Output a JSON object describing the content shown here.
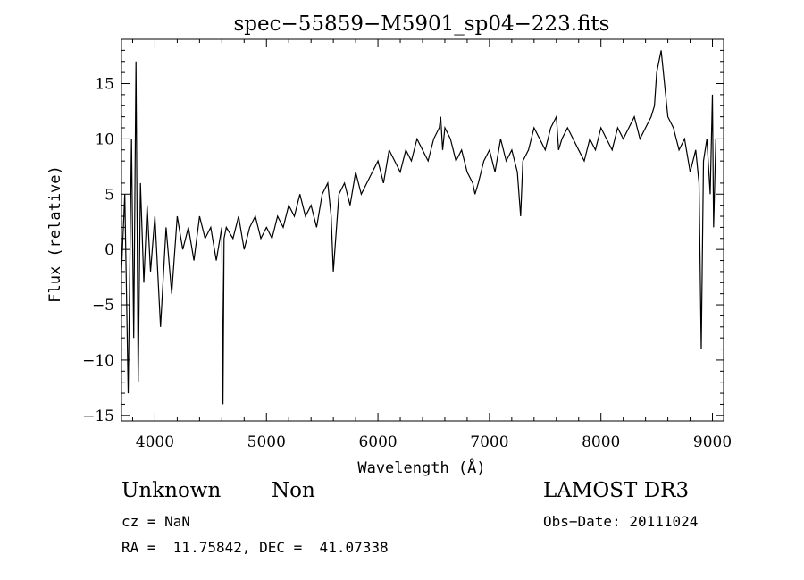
{
  "chart_data": {
    "type": "line",
    "title": "spec−55859−M5901_sp04−223.fits",
    "xlabel": "Wavelength (Å)",
    "ylabel": "Flux (relative)",
    "xlim": [
      3700,
      9100
    ],
    "ylim": [
      -15.5,
      19
    ],
    "x_ticks": [
      4000,
      5000,
      6000,
      7000,
      8000,
      9000
    ],
    "x_tick_labels": [
      "4000",
      "5000",
      "6000",
      "7000",
      "8000",
      "9000"
    ],
    "y_ticks": [
      -15,
      -10,
      -5,
      0,
      5,
      10,
      15
    ],
    "y_tick_labels": [
      "−15",
      "−10",
      "−5",
      "0",
      "5",
      "10",
      "15"
    ],
    "grid": false,
    "series": [
      {
        "x": [
          3700,
          3730,
          3760,
          3790,
          3810,
          3830,
          3850,
          3870,
          3900,
          3930,
          3960,
          4000,
          4050,
          4100,
          4150,
          4200,
          4250,
          4300,
          4350,
          4400,
          4450,
          4500,
          4550,
          4600,
          4610,
          4620,
          4640,
          4700,
          4750,
          4800,
          4850,
          4900,
          4950,
          5000,
          5050,
          5100,
          5150,
          5200,
          5250,
          5300,
          5350,
          5400,
          5450,
          5500,
          5550,
          5580,
          5600,
          5650,
          5700,
          5750,
          5800,
          5850,
          5900,
          5950,
          6000,
          6050,
          6100,
          6150,
          6200,
          6250,
          6300,
          6350,
          6400,
          6450,
          6500,
          6550,
          6563,
          6580,
          6600,
          6650,
          6700,
          6750,
          6800,
          6850,
          6870,
          6900,
          6950,
          7000,
          7050,
          7100,
          7150,
          7200,
          7250,
          7280,
          7300,
          7350,
          7400,
          7450,
          7500,
          7550,
          7600,
          7620,
          7650,
          7700,
          7750,
          7800,
          7850,
          7900,
          7950,
          8000,
          8050,
          8100,
          8150,
          8200,
          8250,
          8300,
          8350,
          8400,
          8450,
          8480,
          8500,
          8540,
          8600,
          8650,
          8700,
          8750,
          8800,
          8850,
          8880,
          8900,
          8920,
          8950,
          8980,
          9000,
          9010,
          9030
        ],
        "y": [
          -2,
          5,
          -13,
          10,
          -8,
          17,
          -12,
          6,
          -3,
          4,
          -2,
          3,
          -7,
          2,
          -4,
          3,
          0,
          2,
          -1,
          3,
          1,
          2,
          -1,
          2,
          -14,
          1,
          2,
          1,
          3,
          0,
          2,
          3,
          1,
          2,
          1,
          3,
          2,
          4,
          3,
          5,
          3,
          4,
          2,
          5,
          6,
          3,
          -2,
          5,
          6,
          4,
          7,
          5,
          6,
          7,
          8,
          6,
          9,
          8,
          7,
          9,
          8,
          10,
          9,
          8,
          10,
          11,
          12,
          9,
          11,
          10,
          8,
          9,
          7,
          6,
          5,
          6,
          8,
          9,
          7,
          10,
          8,
          9,
          7,
          3,
          8,
          9,
          11,
          10,
          9,
          11,
          12,
          9,
          10,
          11,
          10,
          9,
          8,
          10,
          9,
          11,
          10,
          9,
          11,
          10,
          11,
          12,
          10,
          11,
          12,
          13,
          16,
          18,
          12,
          11,
          9,
          10,
          7,
          9,
          6,
          -9,
          8,
          10,
          5,
          14,
          2,
          10
        ]
      }
    ]
  },
  "annotations": {
    "object_class": "Unknown",
    "object_subclass": "Non",
    "survey": "LAMOST DR3",
    "redshift": "cz = NaN",
    "obs_date": "Obs−Date: 20111024",
    "coords": "RA =  11.75842, DEC =  41.07338"
  }
}
